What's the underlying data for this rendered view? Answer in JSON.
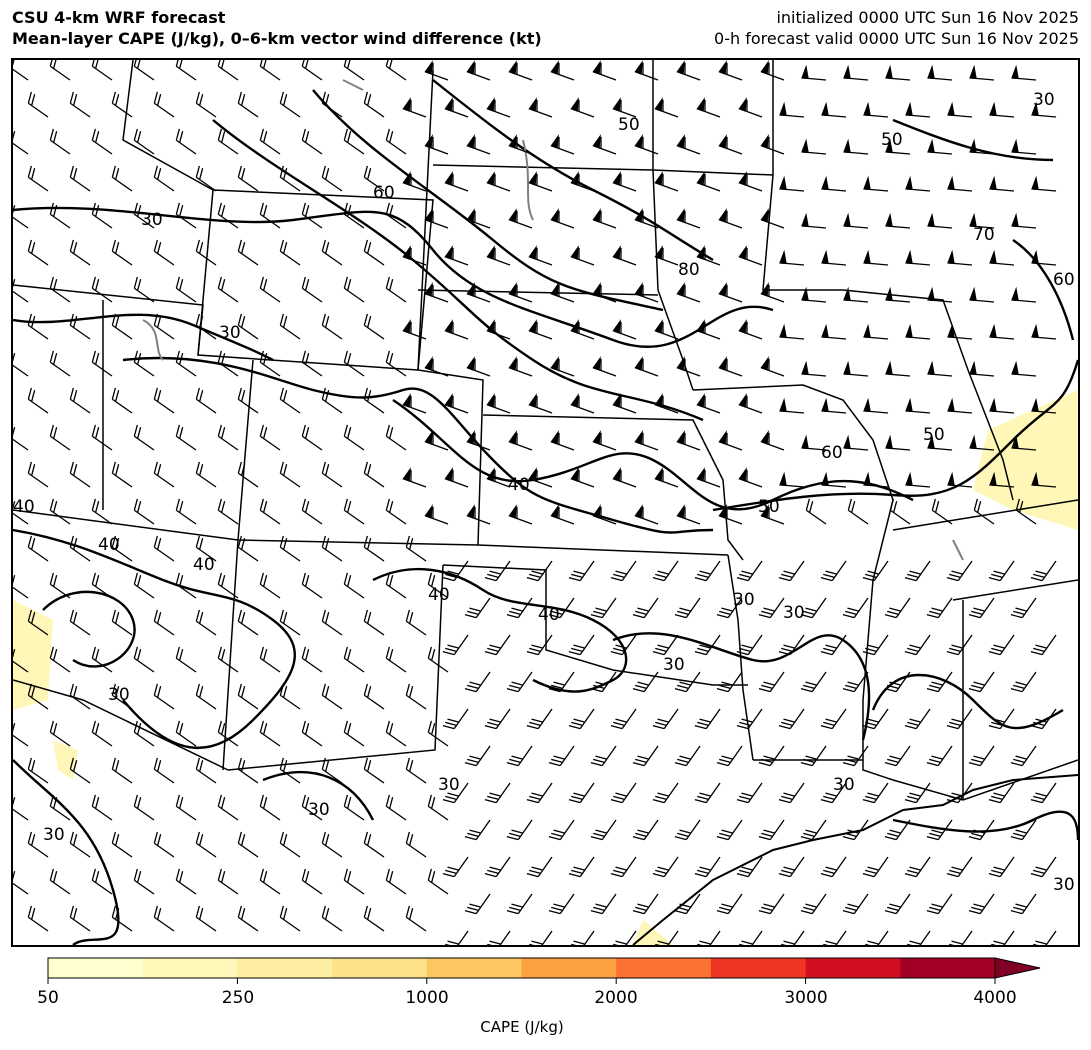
{
  "header": {
    "title_line1": "CSU 4-km WRF forecast",
    "title_line2": "Mean-layer CAPE (J/kg), 0–6-km vector wind difference (kt)",
    "init_line": "initialized 0000 UTC Sun 16 Nov 2025",
    "valid_line": "0-h forecast valid 0000 UTC Sun 16 Nov 2025"
  },
  "map": {
    "contour_labels": [
      "30",
      "40",
      "50",
      "60",
      "70",
      "80"
    ],
    "contour_color": "#000000",
    "secondary_contour_color": "#808080",
    "cape_shading_color": "#fff7b8"
  },
  "colorbar": {
    "label": "CAPE (J/kg)",
    "tick_labels": [
      "50",
      "250",
      "1000",
      "2000",
      "3000",
      "4000"
    ],
    "colors": [
      "#ffffcf",
      "#fff8b8",
      "#feeea1",
      "#fee189",
      "#fec660",
      "#fda243",
      "#fd7132",
      "#ef3624",
      "#d20f21",
      "#a20025"
    ],
    "extend_color": "#800026",
    "extend": "max"
  }
}
